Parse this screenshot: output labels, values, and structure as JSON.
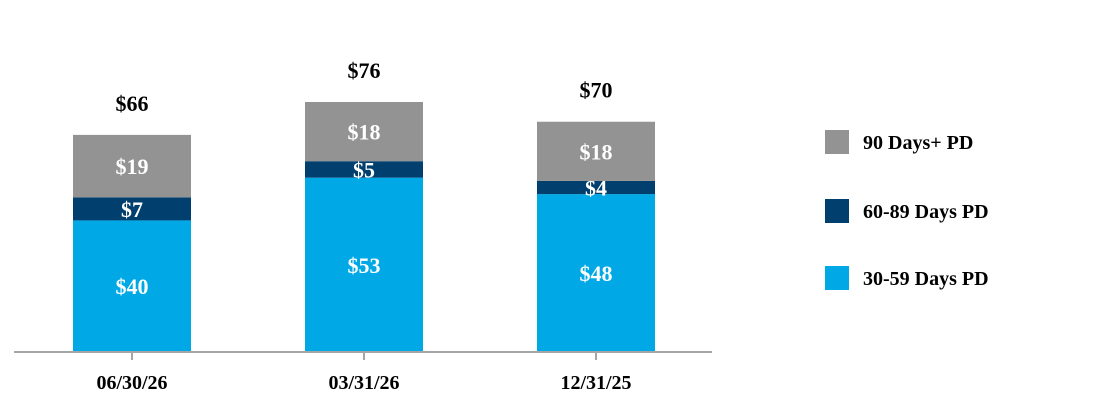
{
  "chart_data": {
    "type": "bar",
    "stacked": true,
    "categories": [
      "06/30/26",
      "03/31/26",
      "12/31/25"
    ],
    "series": [
      {
        "name": "30-59 Days PD",
        "values": [
          40,
          53,
          48
        ],
        "labels": [
          "$40",
          "$53",
          "$48"
        ],
        "color": "#00A9E6"
      },
      {
        "name": "60-89 Days PD",
        "values": [
          7,
          5,
          4
        ],
        "labels": [
          "$7",
          "$5",
          "$4"
        ],
        "color": "#003F6E"
      },
      {
        "name": "90 Days+ PD",
        "values": [
          19,
          18,
          18
        ],
        "labels": [
          "$19",
          "$18",
          "$18"
        ],
        "color": "#939393"
      }
    ],
    "totals": [
      66,
      76,
      70
    ],
    "total_labels": [
      "$66",
      "$76",
      "$70"
    ],
    "legend_order": [
      "90 Days+ PD",
      "60-89 Days PD",
      "30-59 Days PD"
    ],
    "legend_position": "right",
    "ylim": [
      0,
      76
    ],
    "grid": false,
    "axis_color": "#A6A6A6"
  }
}
